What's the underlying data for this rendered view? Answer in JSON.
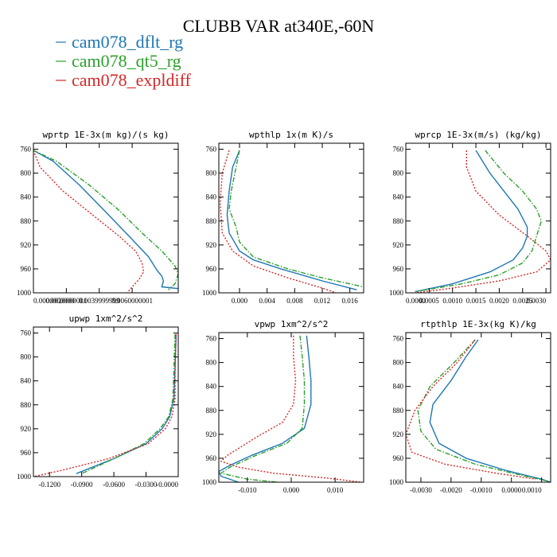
{
  "figure": {
    "title": "CLUBB VAR at340E,-60N",
    "legend": [
      {
        "label": "cam078_dflt_rg",
        "color": "#1f77b4",
        "dash": "solid"
      },
      {
        "label": "cam078_qt5_rg",
        "color": "#2ca02c",
        "dash": "dashdot"
      },
      {
        "label": "cam078_expldiff",
        "color": "#d62728",
        "dash": "dotted"
      }
    ]
  },
  "chart_data": [
    {
      "type": "line",
      "title": "wprtp  1E-3x(m kg)/(s kg)",
      "xlim": [
        0.0,
        0.0088
      ],
      "ylim": [
        1000,
        750
      ],
      "xticks": [
        0.0,
        0.002,
        0.004,
        0.006
      ],
      "xtick_labels": [
        "0.0000000000",
        "0.0020000001",
        "0.0039999999",
        "0.0060000001"
      ],
      "yticks": [
        760,
        800,
        840,
        880,
        920,
        960,
        1000
      ],
      "series": [
        {
          "name": "cam078_dflt_rg",
          "points": [
            [
              0.0,
              762
            ],
            [
              0.0012,
              780
            ],
            [
              0.0028,
              820
            ],
            [
              0.0044,
              865
            ],
            [
              0.0058,
              905
            ],
            [
              0.007,
              940
            ],
            [
              0.0075,
              962
            ],
            [
              0.0078,
              972
            ],
            [
              0.0079,
              980
            ],
            [
              0.0078,
              990
            ],
            [
              0.0085,
              992
            ],
            [
              0.0088,
              993
            ]
          ]
        },
        {
          "name": "cam078_qt5_rg",
          "points": [
            [
              0.0,
              762
            ],
            [
              0.0014,
              780
            ],
            [
              0.0034,
              820
            ],
            [
              0.0052,
              862
            ],
            [
              0.0066,
              900
            ],
            [
              0.0078,
              930
            ],
            [
              0.0086,
              955
            ],
            [
              0.0088,
              968
            ],
            [
              0.0086,
              985
            ],
            [
              0.0082,
              995
            ]
          ]
        },
        {
          "name": "cam078_expldiff",
          "points": [
            [
              0.0,
              762
            ],
            [
              0.0004,
              790
            ],
            [
              0.0018,
              830
            ],
            [
              0.0036,
              870
            ],
            [
              0.0052,
              905
            ],
            [
              0.0062,
              930
            ],
            [
              0.0066,
              950
            ],
            [
              0.0067,
              965
            ],
            [
              0.0064,
              978
            ],
            [
              0.006,
              990
            ],
            [
              0.0057,
              1000
            ]
          ]
        }
      ]
    },
    {
      "type": "line",
      "title": "wpthlp  1x(m K)/s",
      "xlim": [
        -0.003,
        0.018
      ],
      "ylim": [
        1000,
        750
      ],
      "xticks": [
        0.0,
        0.004,
        0.008,
        0.012,
        0.016
      ],
      "xtick_labels": [
        "0.000",
        "0.004",
        "0.008",
        "0.012",
        "0.016"
      ],
      "yticks": [
        760,
        800,
        840,
        880,
        920,
        960,
        1000
      ],
      "series": [
        {
          "name": "cam078_dflt_rg",
          "points": [
            [
              0.0,
              762
            ],
            [
              -0.001,
              790
            ],
            [
              -0.0015,
              830
            ],
            [
              -0.0018,
              870
            ],
            [
              -0.0015,
              900
            ],
            [
              0.0,
              930
            ],
            [
              0.002,
              945
            ],
            [
              0.006,
              960
            ],
            [
              0.012,
              980
            ],
            [
              0.017,
              995
            ]
          ]
        },
        {
          "name": "cam078_qt5_rg",
          "points": [
            [
              0.0,
              762
            ],
            [
              -0.0005,
              790
            ],
            [
              -0.0012,
              830
            ],
            [
              -0.0015,
              860
            ],
            [
              -0.0005,
              890
            ],
            [
              0.0,
              915
            ],
            [
              0.002,
              940
            ],
            [
              0.007,
              960
            ],
            [
              0.012,
              975
            ],
            [
              0.018,
              990
            ]
          ]
        },
        {
          "name": "cam078_expldiff",
          "points": [
            [
              -0.0015,
              762
            ],
            [
              -0.0025,
              800
            ],
            [
              -0.0028,
              850
            ],
            [
              -0.0025,
              900
            ],
            [
              -0.001,
              930
            ],
            [
              0.002,
              955
            ],
            [
              0.007,
              975
            ],
            [
              0.012,
              992
            ],
            [
              0.014,
              1000
            ]
          ]
        }
      ]
    },
    {
      "type": "line",
      "title": "wprcp  1E-3x(m/s) (kg/kg)",
      "xlim": [
        0.0,
        0.0031
      ],
      "ylim": [
        1000,
        750
      ],
      "xticks": [
        0.0,
        0.0005,
        0.001,
        0.0015,
        0.002,
        0.0025,
        0.003
      ],
      "xtick_labels": [
        "0.0000",
        "0.0005",
        "0.0010",
        "0.0015",
        "0.0020",
        "0.0025",
        "0.0030"
      ],
      "yticks": [
        760,
        800,
        840,
        880,
        920,
        960,
        1000
      ],
      "series": [
        {
          "name": "cam078_dflt_rg",
          "points": [
            [
              0.0015,
              762
            ],
            [
              0.0018,
              800
            ],
            [
              0.0021,
              830
            ],
            [
              0.0024,
              860
            ],
            [
              0.0026,
              890
            ],
            [
              0.0026,
              905
            ],
            [
              0.0025,
              925
            ],
            [
              0.0023,
              945
            ],
            [
              0.0018,
              965
            ],
            [
              0.001,
              985
            ],
            [
              0.0002,
              998
            ]
          ]
        },
        {
          "name": "cam078_qt5_rg",
          "points": [
            [
              0.0017,
              762
            ],
            [
              0.0021,
              800
            ],
            [
              0.0025,
              830
            ],
            [
              0.0028,
              860
            ],
            [
              0.0029,
              880
            ],
            [
              0.0028,
              905
            ],
            [
              0.0027,
              930
            ],
            [
              0.0025,
              950
            ],
            [
              0.002,
              970
            ],
            [
              0.0012,
              985
            ],
            [
              0.0002,
              998
            ]
          ]
        },
        {
          "name": "cam078_expldiff",
          "points": [
            [
              0.0013,
              762
            ],
            [
              0.0013,
              790
            ],
            [
              0.0015,
              830
            ],
            [
              0.002,
              870
            ],
            [
              0.0026,
              905
            ],
            [
              0.003,
              930
            ],
            [
              0.0031,
              945
            ],
            [
              0.0028,
              965
            ],
            [
              0.002,
              980
            ],
            [
              0.001,
              992
            ],
            [
              0.0002,
              1000
            ]
          ]
        }
      ]
    },
    {
      "type": "line",
      "title": "upwp  1xm^2/s^2",
      "xlim": [
        -0.135,
        0.0
      ],
      "ylim": [
        1000,
        750
      ],
      "xticks": [
        -0.12,
        -0.09,
        -0.06,
        -0.03,
        0.0
      ],
      "xtick_labels": [
        "-0.1200",
        "-0.0900",
        "-0.0600",
        "-0.0300",
        "-0.0000"
      ],
      "yticks": [
        760,
        800,
        840,
        880,
        920,
        960,
        1000
      ],
      "series": [
        {
          "name": "cam078_dflt_rg",
          "points": [
            [
              -0.002,
              762
            ],
            [
              -0.003,
              820
            ],
            [
              -0.004,
              870
            ],
            [
              -0.008,
              900
            ],
            [
              -0.015,
              920
            ],
            [
              -0.03,
              945
            ],
            [
              -0.06,
              970
            ],
            [
              -0.095,
              995
            ]
          ]
        },
        {
          "name": "cam078_qt5_rg",
          "points": [
            [
              -0.003,
              762
            ],
            [
              -0.004,
              820
            ],
            [
              -0.005,
              870
            ],
            [
              -0.009,
              900
            ],
            [
              -0.017,
              920
            ],
            [
              -0.032,
              945
            ],
            [
              -0.06,
              970
            ],
            [
              -0.09,
              995
            ]
          ]
        },
        {
          "name": "cam078_expldiff",
          "points": [
            [
              -0.002,
              762
            ],
            [
              -0.003,
              820
            ],
            [
              -0.003,
              870
            ],
            [
              -0.006,
              900
            ],
            [
              -0.012,
              920
            ],
            [
              -0.028,
              945
            ],
            [
              -0.065,
              970
            ],
            [
              -0.11,
              990
            ],
            [
              -0.135,
              1000
            ]
          ]
        }
      ]
    },
    {
      "type": "line",
      "title": "vpwp  1xm^2/s^2",
      "xlim": [
        -0.0165,
        0.0165
      ],
      "ylim": [
        1000,
        750
      ],
      "xticks": [
        -0.01,
        0.0,
        0.01
      ],
      "xtick_labels": [
        "-0.010",
        "0.000",
        "0.010"
      ],
      "yticks": [
        760,
        800,
        840,
        880,
        920,
        960,
        1000
      ],
      "series": [
        {
          "name": "cam078_dflt_rg",
          "points": [
            [
              0.0035,
              755
            ],
            [
              0.004,
              790
            ],
            [
              0.0045,
              830
            ],
            [
              0.0045,
              870
            ],
            [
              0.003,
              910
            ],
            [
              -0.002,
              935
            ],
            [
              -0.009,
              955
            ],
            [
              -0.014,
              972
            ],
            [
              -0.0165,
              982
            ],
            [
              -0.016,
              990
            ],
            [
              -0.012,
              1000
            ]
          ]
        },
        {
          "name": "cam078_qt5_rg",
          "points": [
            [
              0.002,
              755
            ],
            [
              0.0025,
              790
            ],
            [
              0.003,
              830
            ],
            [
              0.003,
              870
            ],
            [
              0.0025,
              910
            ],
            [
              -0.001,
              935
            ],
            [
              -0.008,
              955
            ],
            [
              -0.014,
              975
            ],
            [
              -0.016,
              985
            ],
            [
              -0.01,
              995
            ],
            [
              -0.003,
              1000
            ]
          ]
        },
        {
          "name": "cam078_expldiff",
          "points": [
            [
              0.0005,
              755
            ],
            [
              0.0005,
              790
            ],
            [
              0.001,
              830
            ],
            [
              0.0005,
              870
            ],
            [
              -0.002,
              900
            ],
            [
              -0.008,
              925
            ],
            [
              -0.0145,
              955
            ],
            [
              -0.016,
              965
            ],
            [
              -0.012,
              975
            ],
            [
              -0.004,
              985
            ],
            [
              0.008,
              993
            ],
            [
              0.016,
              1000
            ]
          ]
        }
      ]
    },
    {
      "type": "line",
      "title": "rtpthlp  1E-3x(kg K)/kg",
      "xlim": [
        -0.0035,
        0.0013
      ],
      "ylim": [
        1000,
        750
      ],
      "xticks": [
        -0.003,
        -0.002,
        -0.001,
        0.0,
        0.001
      ],
      "xtick_labels": [
        "-0.0030",
        "-0.0020",
        "-0.0010",
        "0.0000",
        "0.0010"
      ],
      "yticks": [
        760,
        800,
        840,
        880,
        920,
        960,
        1000
      ],
      "series": [
        {
          "name": "cam078_dflt_rg",
          "points": [
            [
              -0.0011,
              762
            ],
            [
              -0.0015,
              790
            ],
            [
              -0.002,
              830
            ],
            [
              -0.0026,
              870
            ],
            [
              -0.0027,
              900
            ],
            [
              -0.0024,
              935
            ],
            [
              -0.0015,
              960
            ],
            [
              -0.0002,
              980
            ],
            [
              0.001,
              995
            ],
            [
              0.0013,
              1000
            ]
          ]
        },
        {
          "name": "cam078_qt5_rg",
          "points": [
            [
              -0.0012,
              762
            ],
            [
              -0.0019,
              800
            ],
            [
              -0.0027,
              840
            ],
            [
              -0.0031,
              880
            ],
            [
              -0.003,
              915
            ],
            [
              -0.0025,
              945
            ],
            [
              -0.0012,
              970
            ],
            [
              0.0003,
              988
            ],
            [
              0.0012,
              998
            ]
          ]
        },
        {
          "name": "cam078_expldiff",
          "points": [
            [
              -0.0012,
              762
            ],
            [
              -0.0018,
              800
            ],
            [
              -0.0026,
              840
            ],
            [
              -0.0032,
              880
            ],
            [
              -0.0035,
              920
            ],
            [
              -0.0033,
              950
            ],
            [
              -0.0022,
              970
            ],
            [
              -0.0005,
              985
            ],
            [
              0.0008,
              995
            ]
          ]
        }
      ]
    }
  ]
}
